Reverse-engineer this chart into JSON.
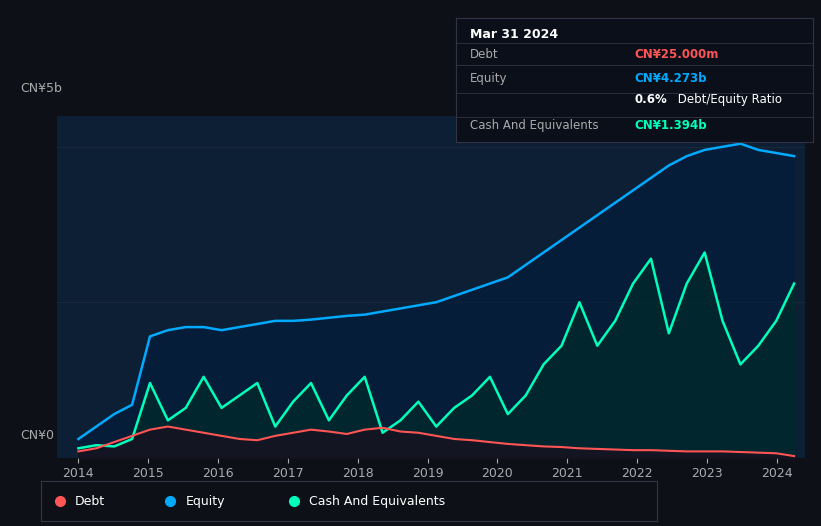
{
  "bg_color": "#0d1117",
  "plot_bg_color": "#0d1f35",
  "ylabel_top": "CN¥5b",
  "ylabel_bottom": "CN¥0",
  "equity_color": "#00aaff",
  "debt_color": "#ff5555",
  "cash_color": "#00ffbb",
  "legend_items": [
    {
      "label": "Debt",
      "color": "#ff5555"
    },
    {
      "label": "Equity",
      "color": "#00aaff"
    },
    {
      "label": "Cash And Equivalents",
      "color": "#00ffbb"
    }
  ],
  "tooltip": {
    "date": "Mar 31 2024",
    "debt_label": "Debt",
    "debt_value": "CN¥25.000m",
    "debt_color": "#ff5555",
    "equity_label": "Equity",
    "equity_value": "CN¥4.273b",
    "equity_color": "#00aaff",
    "ratio_bold": "0.6%",
    "ratio_text": " Debt/Equity Ratio",
    "cash_label": "Cash And Equivalents",
    "cash_value": "CN¥1.394b",
    "cash_color": "#00ffbb",
    "label_color": "#aaaaaa",
    "bg": "#0a0f1a",
    "border": "#333344"
  }
}
